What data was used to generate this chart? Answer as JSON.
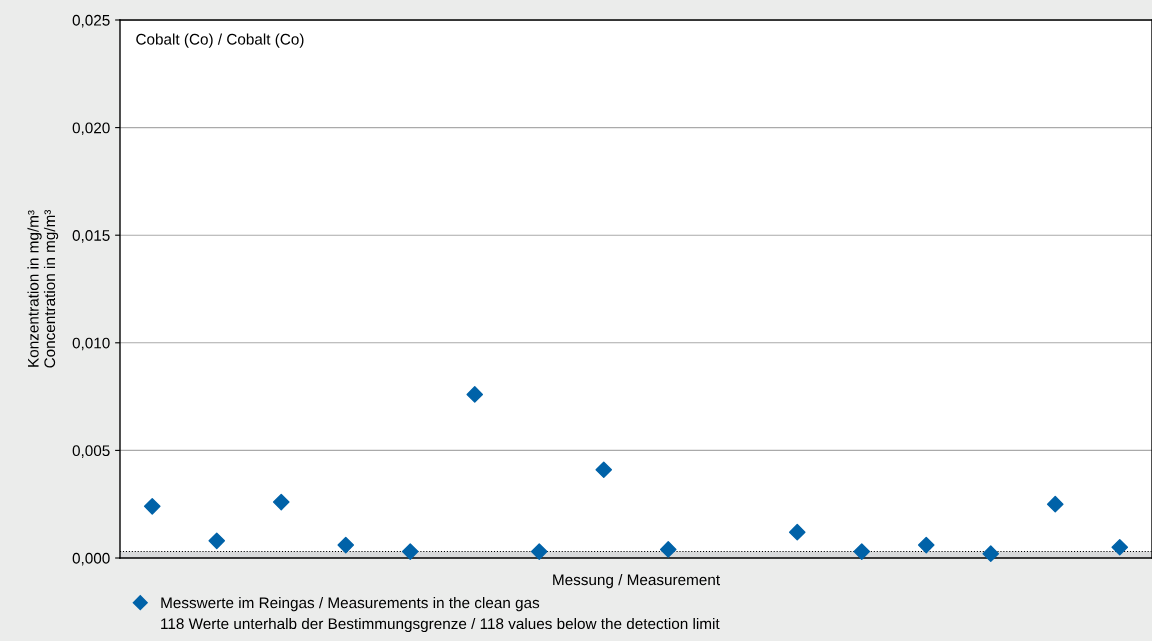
{
  "chart_data": {
    "type": "scatter",
    "title": "Cobalt (Co) / Cobalt (Co)",
    "xlabel": "Messung / Measurement",
    "ylabel": "Konzentration in mg/m³\nConcentration in mg/m³",
    "categories": [
      null,
      null,
      null,
      null,
      null,
      null,
      null,
      null,
      null,
      null,
      null,
      null,
      null,
      null,
      null,
      null
    ],
    "series": [
      {
        "name": "Messwerte im Reingas / Measurements in the clean gas",
        "color": "#0062a8",
        "values": [
          0.0024,
          0.0008,
          0.0026,
          0.0006,
          0.0003,
          0.0076,
          0.0003,
          0.0041,
          0.0004,
          null,
          0.0012,
          0.0003,
          0.0006,
          0.0002,
          0.0025,
          0.0005
        ]
      }
    ],
    "ylim": [
      0,
      0.025
    ],
    "yticks": [
      {
        "value": 0,
        "label": "0,000"
      },
      {
        "value": 0.005,
        "label": "0,005"
      },
      {
        "value": 0.01,
        "label": "0,010"
      },
      {
        "value": 0.015,
        "label": "0,015"
      },
      {
        "value": 0.02,
        "label": "0,020"
      },
      {
        "value": 0.025,
        "label": "0,025"
      }
    ],
    "bands": [
      {
        "axis": "y",
        "from": 0,
        "to": 0.0003,
        "color": "#d9dadb"
      }
    ],
    "ref_lines": [
      {
        "axis": "y",
        "value": 0.0003,
        "color": "#000000",
        "line_style": "dotted"
      }
    ],
    "annotations": [
      "118 Werte unterhalb der Bestimmungsgrenze / 118 values below the detection limit"
    ],
    "marker": "diamond",
    "grid": "y",
    "legend": "bottom"
  }
}
